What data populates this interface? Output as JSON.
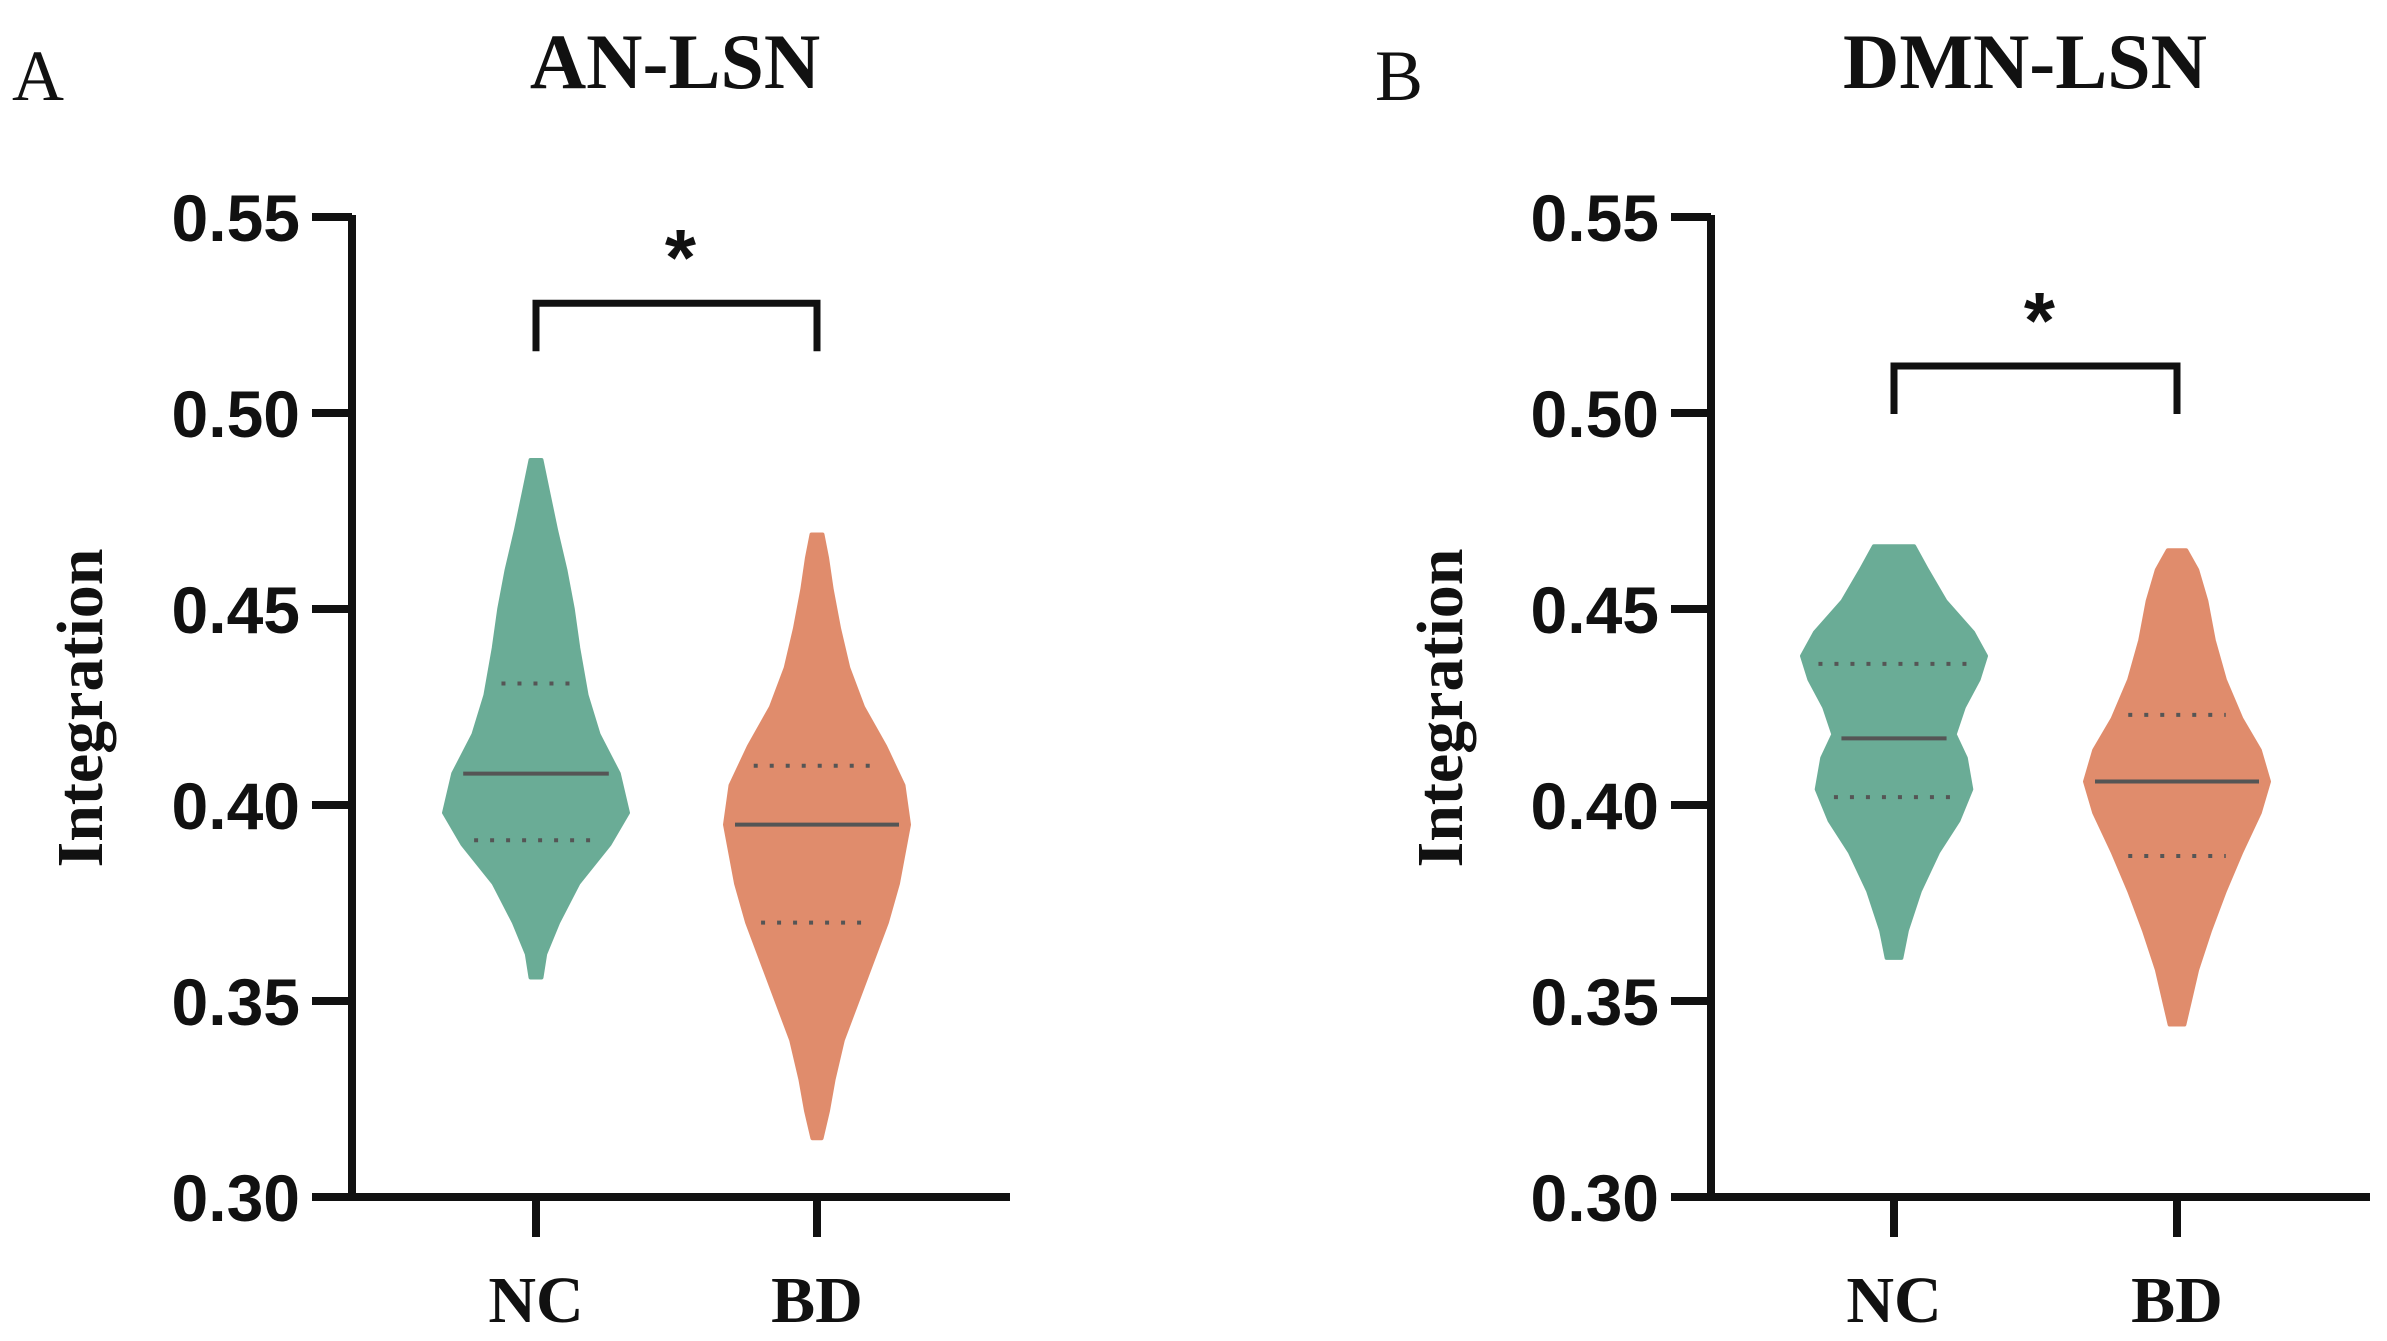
{
  "figure": {
    "background": "#ffffff"
  },
  "chart_data": [
    {
      "type": "violin",
      "panel_letter": "A",
      "title": "AN-LSN",
      "ylabel": "Integration",
      "xlabel": "",
      "ylim": [
        0.3,
        0.55
      ],
      "yticks": [
        0.3,
        0.35,
        0.4,
        0.45,
        0.5,
        0.55
      ],
      "ytick_labels": [
        "0.30",
        "0.35",
        "0.40",
        "0.45",
        "0.50",
        "0.55"
      ],
      "categories": [
        "NC",
        "BD"
      ],
      "series": [
        {
          "name": "NC",
          "color": "#6aac96",
          "min": 0.356,
          "max": 0.488,
          "median": 0.408,
          "q1": 0.391,
          "q3": 0.431,
          "density": [
            [
              0.356,
              0.06
            ],
            [
              0.362,
              0.1
            ],
            [
              0.37,
              0.24
            ],
            [
              0.38,
              0.46
            ],
            [
              0.39,
              0.8
            ],
            [
              0.398,
              1.0
            ],
            [
              0.408,
              0.9
            ],
            [
              0.418,
              0.68
            ],
            [
              0.428,
              0.55
            ],
            [
              0.44,
              0.46
            ],
            [
              0.45,
              0.4
            ],
            [
              0.46,
              0.32
            ],
            [
              0.47,
              0.22
            ],
            [
              0.48,
              0.13
            ],
            [
              0.488,
              0.06
            ]
          ]
        },
        {
          "name": "BD",
          "color": "#e08c6c",
          "min": 0.315,
          "max": 0.469,
          "median": 0.395,
          "q1": 0.37,
          "q3": 0.41,
          "density": [
            [
              0.315,
              0.05
            ],
            [
              0.322,
              0.12
            ],
            [
              0.33,
              0.18
            ],
            [
              0.34,
              0.28
            ],
            [
              0.35,
              0.44
            ],
            [
              0.36,
              0.6
            ],
            [
              0.37,
              0.76
            ],
            [
              0.38,
              0.88
            ],
            [
              0.395,
              1.0
            ],
            [
              0.405,
              0.94
            ],
            [
              0.415,
              0.74
            ],
            [
              0.425,
              0.5
            ],
            [
              0.435,
              0.34
            ],
            [
              0.445,
              0.24
            ],
            [
              0.455,
              0.16
            ],
            [
              0.463,
              0.11
            ],
            [
              0.469,
              0.06
            ]
          ]
        }
      ],
      "significance": {
        "pair": [
          "NC",
          "BD"
        ],
        "label": "*",
        "y": 0.528
      }
    },
    {
      "type": "violin",
      "panel_letter": "B",
      "title": "DMN-LSN",
      "ylabel": "Integration",
      "xlabel": "",
      "ylim": [
        0.3,
        0.55
      ],
      "yticks": [
        0.3,
        0.35,
        0.4,
        0.45,
        0.5,
        0.55
      ],
      "ytick_labels": [
        "0.30",
        "0.35",
        "0.40",
        "0.45",
        "0.50",
        "0.55"
      ],
      "categories": [
        "NC",
        "BD"
      ],
      "series": [
        {
          "name": "NC",
          "color": "#6aac96",
          "min": 0.361,
          "max": 0.466,
          "median": 0.417,
          "q1": 0.402,
          "q3": 0.436,
          "density": [
            [
              0.361,
              0.08
            ],
            [
              0.368,
              0.14
            ],
            [
              0.378,
              0.28
            ],
            [
              0.388,
              0.48
            ],
            [
              0.396,
              0.7
            ],
            [
              0.404,
              0.84
            ],
            [
              0.412,
              0.78
            ],
            [
              0.418,
              0.66
            ],
            [
              0.425,
              0.76
            ],
            [
              0.432,
              0.92
            ],
            [
              0.438,
              1.0
            ],
            [
              0.444,
              0.86
            ],
            [
              0.452,
              0.56
            ],
            [
              0.46,
              0.36
            ],
            [
              0.466,
              0.22
            ]
          ]
        },
        {
          "name": "BD",
          "color": "#e08c6c",
          "min": 0.344,
          "max": 0.465,
          "median": 0.406,
          "q1": 0.387,
          "q3": 0.423,
          "density": [
            [
              0.344,
              0.08
            ],
            [
              0.35,
              0.14
            ],
            [
              0.358,
              0.22
            ],
            [
              0.368,
              0.36
            ],
            [
              0.378,
              0.52
            ],
            [
              0.388,
              0.7
            ],
            [
              0.398,
              0.9
            ],
            [
              0.406,
              1.0
            ],
            [
              0.414,
              0.9
            ],
            [
              0.422,
              0.7
            ],
            [
              0.432,
              0.52
            ],
            [
              0.442,
              0.4
            ],
            [
              0.452,
              0.32
            ],
            [
              0.46,
              0.22
            ],
            [
              0.465,
              0.1
            ]
          ]
        }
      ],
      "significance": {
        "pair": [
          "NC",
          "BD"
        ],
        "label": "*",
        "y": 0.512
      }
    }
  ]
}
